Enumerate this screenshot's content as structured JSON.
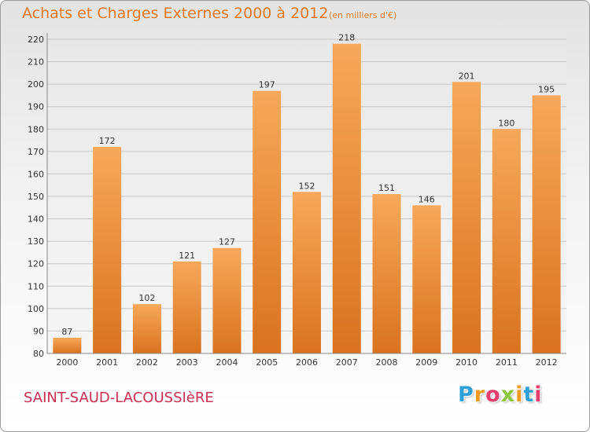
{
  "header": {
    "title": "Achats et Charges Externes 2000 à 2012",
    "unit": "(en milliers d'€)"
  },
  "footer": {
    "commune": "SAINT-SAUD-LACOUSSIèRE",
    "logo_letters": [
      "P",
      "r",
      "o",
      "x",
      "i",
      "t",
      "i"
    ],
    "logo_colors": [
      "#2f9fd8",
      "#f29a1e",
      "#e63c6e",
      "#8cc63f",
      "#f29a1e",
      "#2f9fd8",
      "#e63c6e"
    ]
  },
  "chart_data": {
    "type": "bar",
    "categories": [
      "2000",
      "2001",
      "2002",
      "2003",
      "2004",
      "2005",
      "2006",
      "2007",
      "2008",
      "2009",
      "2010",
      "2011",
      "2012"
    ],
    "values": [
      87,
      172,
      102,
      121,
      127,
      197,
      152,
      218,
      151,
      146,
      201,
      180,
      195
    ],
    "ylim": [
      80,
      220
    ],
    "yticks": [
      80,
      90,
      100,
      110,
      120,
      130,
      140,
      150,
      160,
      170,
      180,
      190,
      200,
      210,
      220
    ],
    "grid": true,
    "bar_color_top": "#f7a85a",
    "bar_color_bottom": "#d9731f"
  }
}
